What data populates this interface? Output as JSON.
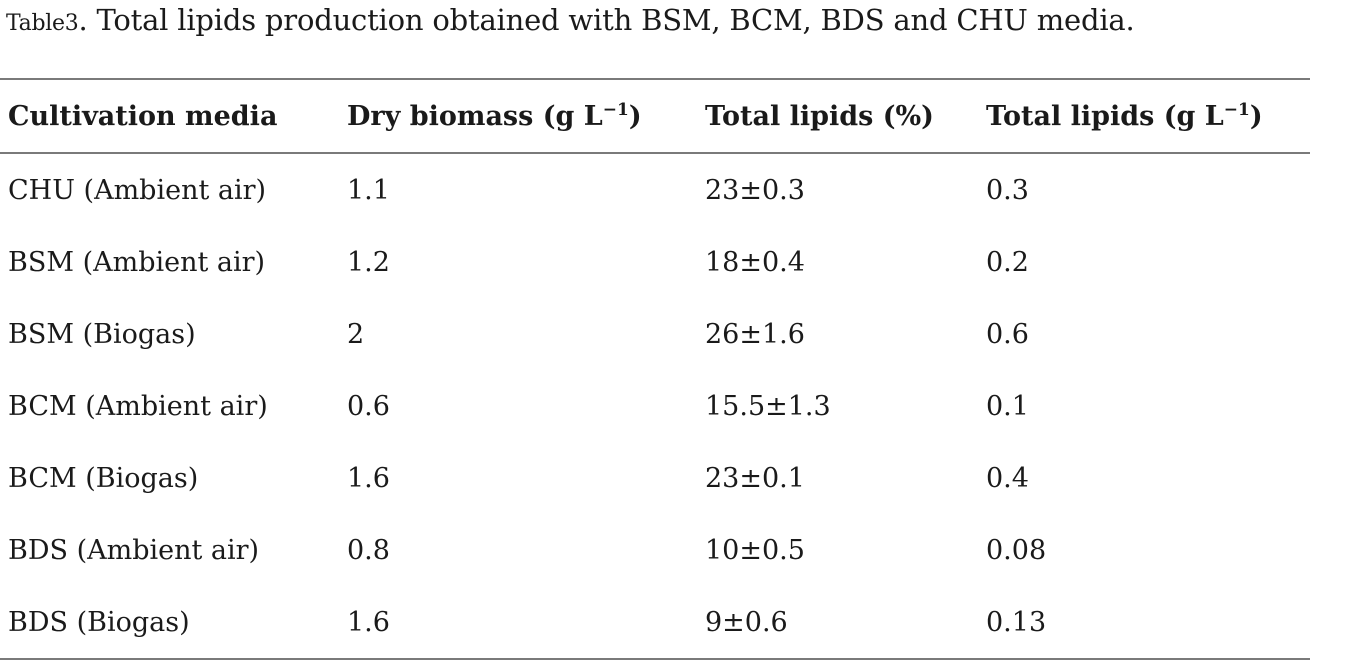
{
  "caption": {
    "label": "Table",
    "number": "3",
    "text": ". Total lipids production obtained with BSM, BCM, BDS and CHU media."
  },
  "table": {
    "headers": [
      {
        "text": "Cultivation media",
        "unit_base": "",
        "unit_sup": "",
        "unit_close": ""
      },
      {
        "text": "Dry biomass (g L",
        "unit_base": "",
        "unit_sup": "−1",
        "unit_close": ")"
      },
      {
        "text": "Total lipids (%)",
        "unit_base": "",
        "unit_sup": "",
        "unit_close": ""
      },
      {
        "text": "Total lipids (g L",
        "unit_base": "",
        "unit_sup": "−1",
        "unit_close": ")"
      }
    ],
    "rows": [
      [
        "CHU (Ambient air)",
        "1.1",
        "23±0.3",
        "0.3"
      ],
      [
        "BSM (Ambient air)",
        "1.2",
        "18±0.4",
        "0.2"
      ],
      [
        "BSM (Biogas)",
        "2",
        "26±1.6",
        "0.6"
      ],
      [
        "BCM (Ambient air)",
        "0.6",
        "15.5±1.3",
        "0.1"
      ],
      [
        "BCM (Biogas)",
        "1.6",
        "23±0.1",
        "0.4"
      ],
      [
        "BDS (Ambient air)",
        "0.8",
        "10±0.5",
        "0.08"
      ],
      [
        "BDS (Biogas)",
        "1.6",
        "9±0.6",
        "0.13"
      ]
    ]
  }
}
